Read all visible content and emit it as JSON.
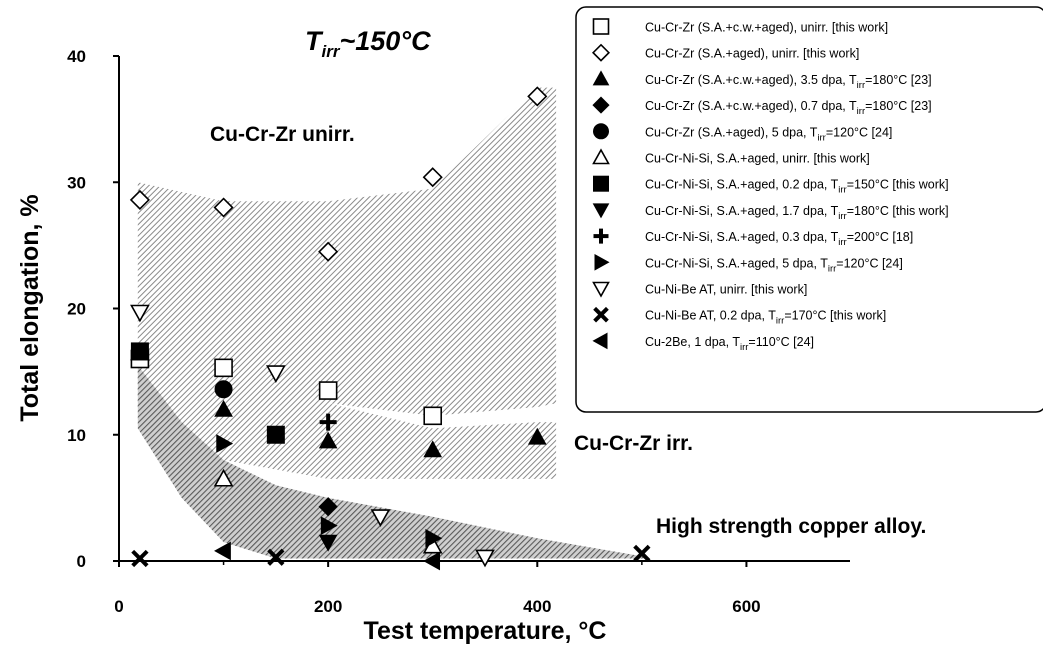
{
  "chart_data": {
    "type": "scatter",
    "title_html": "T<tspan font-size='14' dy='6'>irr</tspan><tspan dy='-6'>~150°C</tspan>",
    "title_parts": {
      "main": "T",
      "sub": "irr",
      "rest": "~150°C"
    },
    "xlabel": "Test temperature, °C",
    "ylabel": "Total elongation, %",
    "xlim": [
      0,
      700
    ],
    "ylim": [
      0,
      40
    ],
    "x_ticks": [
      0,
      200,
      400,
      600
    ],
    "y_ticks": [
      0,
      10,
      20,
      30,
      40
    ],
    "grid": false,
    "legend_position": "top-right",
    "annotations": [
      {
        "id": "unirr",
        "text": "Cu-Cr-Zr unirr."
      },
      {
        "id": "irr",
        "text": "Cu-Cr-Zr irr."
      },
      {
        "id": "hs",
        "text": "High strength copper alloy."
      }
    ],
    "bands": [
      {
        "id": "cucrzr-unirr",
        "upper": [
          [
            18,
            30
          ],
          [
            100,
            28.5
          ],
          [
            200,
            28.5
          ],
          [
            300,
            29.5
          ],
          [
            400,
            37.5
          ],
          [
            418,
            37.5
          ]
        ],
        "lower": [
          [
            418,
            12.5
          ],
          [
            400,
            12.2
          ],
          [
            300,
            11.5
          ],
          [
            200,
            12.5
          ],
          [
            100,
            13.5
          ],
          [
            18,
            15
          ]
        ]
      },
      {
        "id": "cucrzr-irr",
        "upper": [
          [
            18,
            17
          ],
          [
            100,
            14
          ],
          [
            200,
            12.5
          ],
          [
            300,
            10.5
          ],
          [
            400,
            11
          ],
          [
            418,
            11
          ]
        ],
        "lower": [
          [
            418,
            6.5
          ],
          [
            400,
            6.5
          ],
          [
            300,
            6.5
          ],
          [
            200,
            6.5
          ],
          [
            100,
            8
          ],
          [
            18,
            12
          ]
        ]
      },
      {
        "id": "high-strength",
        "upper": [
          [
            18,
            15.5
          ],
          [
            60,
            11
          ],
          [
            100,
            8
          ],
          [
            150,
            6
          ],
          [
            200,
            5
          ],
          [
            300,
            3.5
          ],
          [
            400,
            1.8
          ],
          [
            505,
            0.3
          ]
        ],
        "lower": [
          [
            505,
            0.2
          ],
          [
            400,
            0.2
          ],
          [
            200,
            0.2
          ],
          [
            150,
            0.2
          ],
          [
            100,
            1.5
          ],
          [
            60,
            5
          ],
          [
            18,
            10.5
          ]
        ]
      }
    ],
    "series": [
      {
        "name_parts": [
          "Cu-Cr-Zr (S.A.+c.w.+aged), unirr. [this work]"
        ],
        "marker": "square-open",
        "points": [
          [
            20,
            16
          ],
          [
            100,
            15.3
          ],
          [
            200,
            13.5
          ],
          [
            300,
            11.5
          ]
        ]
      },
      {
        "name_parts": [
          "Cu-Cr-Zr (S.A.+aged), unirr. [this work]"
        ],
        "marker": "diamond-open",
        "points": [
          [
            20,
            28.6
          ],
          [
            100,
            28
          ],
          [
            200,
            24.5
          ],
          [
            300,
            30.4
          ],
          [
            400,
            36.8
          ]
        ]
      },
      {
        "name_parts": [
          "Cu-Cr-Zr (S.A.+c.w.+aged), 3.5 dpa, T",
          "irr",
          "=180°C [23]"
        ],
        "marker": "triangle-up-filled",
        "points": [
          [
            100,
            12
          ],
          [
            200,
            9.5
          ],
          [
            300,
            8.8
          ],
          [
            400,
            9.8
          ]
        ]
      },
      {
        "name_parts": [
          "Cu-Cr-Zr (S.A.+c.w.+aged), 0.7 dpa, T",
          "irr",
          "=180°C [23]"
        ],
        "marker": "diamond-filled",
        "points": [
          [
            200,
            4.3
          ]
        ]
      },
      {
        "name_parts": [
          "Cu-Cr-Zr (S.A.+aged), 5 dpa, T",
          "irr",
          "=120°C [24]"
        ],
        "marker": "circle-filled",
        "points": [
          [
            100,
            13.6
          ]
        ]
      },
      {
        "name_parts": [
          "Cu-Cr-Ni-Si, S.A.+aged, unirr. [this work]"
        ],
        "marker": "triangle-up-open",
        "points": [
          [
            20,
            16.5
          ],
          [
            100,
            6.5
          ],
          [
            300,
            1.2
          ]
        ]
      },
      {
        "name_parts": [
          "Cu-Cr-Ni-Si, S.A.+aged, 0.2 dpa, T",
          "irr",
          "=150°C [this work]"
        ],
        "marker": "square-filled",
        "points": [
          [
            20,
            16.6
          ],
          [
            150,
            10
          ]
        ]
      },
      {
        "name_parts": [
          "Cu-Cr-Ni-Si, S.A.+aged, 1.7 dpa, T",
          "irr",
          "=180°C [this work]"
        ],
        "marker": "triangle-down-filled",
        "points": [
          [
            200,
            1.5
          ]
        ]
      },
      {
        "name_parts": [
          "Cu-Cr-Ni-Si, S.A.+aged, 0.3 dpa, T",
          "irr",
          "=200°C [18]"
        ],
        "marker": "plus",
        "points": [
          [
            200,
            11
          ]
        ]
      },
      {
        "name_parts": [
          "Cu-Cr-Ni-Si, S.A.+aged, 5 dpa, T",
          "irr",
          "=120°C [24]"
        ],
        "marker": "triangle-right-filled",
        "points": [
          [
            100,
            9.3
          ],
          [
            200,
            2.8
          ],
          [
            300,
            1.8
          ]
        ]
      },
      {
        "name_parts": [
          "Cu-Ni-Be AT, unirr. [this work]"
        ],
        "marker": "triangle-down-open",
        "points": [
          [
            20,
            19.7
          ],
          [
            150,
            14.9
          ],
          [
            250,
            3.5
          ],
          [
            350,
            0.3
          ]
        ]
      },
      {
        "name_parts": [
          "Cu-Ni-Be AT, 0.2 dpa, T",
          "irr",
          "=170°C [this work]"
        ],
        "marker": "x",
        "points": [
          [
            20,
            0.2
          ],
          [
            150,
            0.3
          ],
          [
            500,
            0.6
          ]
        ]
      },
      {
        "name_parts": [
          "Cu-2Be, 1 dpa, T",
          "irr",
          "=110°C [24]"
        ],
        "marker": "triangle-left-filled",
        "points": [
          [
            100,
            0.8
          ],
          [
            300,
            0
          ]
        ]
      }
    ]
  }
}
